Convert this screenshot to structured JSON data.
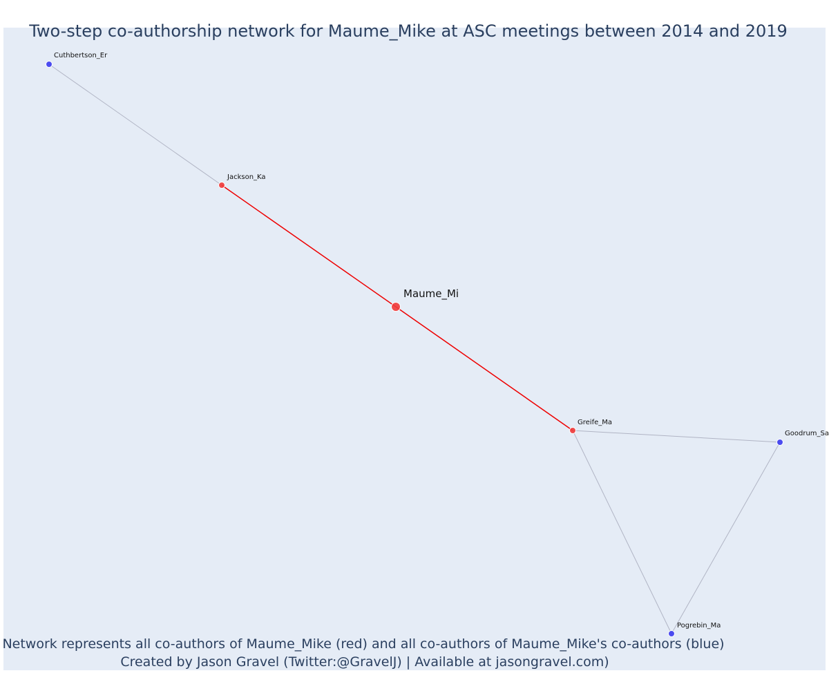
{
  "title": "Two-step co-authorship network for Maume_Mike at ASC meetings between 2014 and 2019",
  "footer": {
    "line1": "Network represents all co-authors of Maume_Mike (red) and all co-authors of Maume_Mike's co-authors (blue)",
    "line2": "Created by Jason Gravel (Twitter:@GravelJ) | Available at jasongravel.com)"
  },
  "colors": {
    "background": "#e5ecf6",
    "direct_coauthor": "#ef3b3b",
    "second_step_coauthor": "#3b3bef",
    "direct_edge": "#ee0000",
    "indirect_edge": "#b0b4c4",
    "text": "#2a3f5f"
  },
  "nodes": [
    {
      "id": "Maume_Mi",
      "label": "Maume_Mi",
      "group": "focal"
    },
    {
      "id": "Jackson_Ka",
      "label": "Jackson_Ka",
      "group": "direct"
    },
    {
      "id": "Greife_Ma",
      "label": "Greife_Ma",
      "group": "direct"
    },
    {
      "id": "Cuthbertson_Er",
      "label": "Cuthbertson_Er",
      "group": "second"
    },
    {
      "id": "Goodrum_Sa",
      "label": "Goodrum_Sa",
      "group": "second"
    },
    {
      "id": "Pogrebin_Ma",
      "label": "Pogrebin_Ma",
      "group": "second"
    }
  ],
  "edges": [
    {
      "source": "Maume_Mi",
      "target": "Jackson_Ka",
      "type": "direct"
    },
    {
      "source": "Maume_Mi",
      "target": "Greife_Ma",
      "type": "direct"
    },
    {
      "source": "Jackson_Ka",
      "target": "Cuthbertson_Er",
      "type": "indirect"
    },
    {
      "source": "Greife_Ma",
      "target": "Goodrum_Sa",
      "type": "indirect"
    },
    {
      "source": "Greife_Ma",
      "target": "Pogrebin_Ma",
      "type": "indirect"
    },
    {
      "source": "Goodrum_Sa",
      "target": "Pogrebin_Ma",
      "type": "indirect"
    }
  ]
}
